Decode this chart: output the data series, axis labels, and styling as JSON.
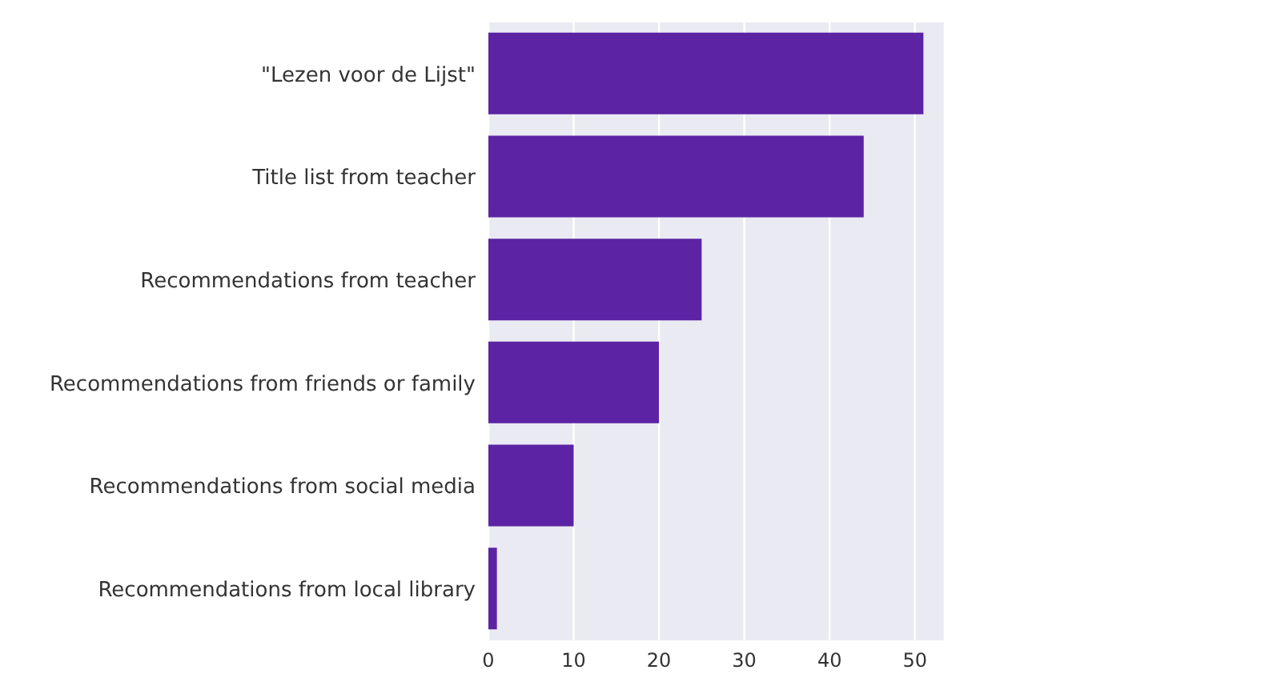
{
  "chart_data": {
    "type": "bar",
    "orientation": "horizontal",
    "categories": [
      "\"Lezen voor de Lijst\"",
      "Title list from teacher",
      "Recommendations from teacher",
      "Recommendations from friends or family",
      "Recommendations from social media",
      "Recommendations from local library"
    ],
    "values": [
      51,
      44,
      25,
      20,
      10,
      1
    ],
    "color": "#5c24a4",
    "xlim": [
      0,
      53.5
    ],
    "xticks": [
      0,
      10,
      20,
      30,
      40,
      50
    ],
    "grid": "x"
  }
}
